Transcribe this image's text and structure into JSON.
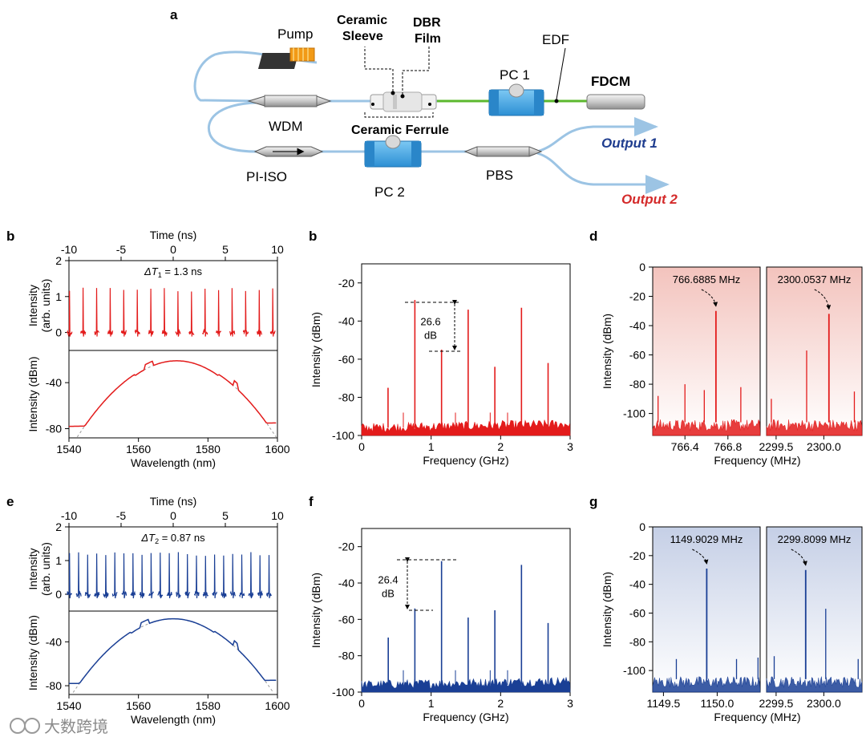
{
  "panel_labels": {
    "a": "a",
    "b1": "b",
    "b2": "b",
    "d": "d",
    "e": "e",
    "f": "f",
    "g": "g"
  },
  "schematic": {
    "pump": "Pump",
    "ceramic_sleeve_1": "Ceramic",
    "ceramic_sleeve_2": "Sleeve",
    "dbr_1": "DBR",
    "dbr_2": "Film",
    "edf": "EDF",
    "pc1": "PC 1",
    "fdcm": "FDCM",
    "wdm": "WDM",
    "ceramic_ferrule": "Ceramic Ferrule",
    "output1": "Output 1",
    "pi_iso": "PI-ISO",
    "pc2": "PC 2",
    "pbs": "PBS",
    "output2": "Output 2",
    "colors": {
      "fiber": "#9cc4e4",
      "green_fiber": "#5cb82e",
      "pc_blue": "#3aa0e0",
      "output1": "#1f3d8f",
      "output2": "#d42a2a"
    }
  },
  "watermark": {
    "text": "大数跨境"
  },
  "chart_data": [
    {
      "id": "b_time",
      "type": "line",
      "color": "#e31b1b",
      "title": "Time (ns)",
      "ylabel": "Intensity (arb. units)",
      "ylabel_lines": [
        "Intensity",
        "(arb. units)"
      ],
      "xlim": [
        -10,
        10
      ],
      "ylim": [
        -0.5,
        2
      ],
      "xticks": [
        "-10",
        "-5",
        "0",
        "5",
        "10"
      ],
      "yticks": [
        "0",
        "1",
        "2"
      ],
      "annotation": "ΔT",
      "annotation_sub": "1",
      "annotation_value": "= 1.3 ns",
      "pulse_period_ns": 1.3
    },
    {
      "id": "b_spec",
      "type": "line",
      "color": "#e31b1b",
      "xlabel": "Wavelength (nm)",
      "ylabel": "Intensity (dBm)",
      "xlim": [
        1540,
        1600
      ],
      "ylim": [
        -88,
        -12
      ],
      "xticks": [
        "1540",
        "1560",
        "1580",
        "1600"
      ],
      "yticks": [
        "-40",
        "-80"
      ],
      "center_nm": 1571,
      "peak_dbm": -21
    },
    {
      "id": "c_rf",
      "type": "bar",
      "color": "#e31b1b",
      "xlabel": "Frequency (GHz)",
      "ylabel": "Intensity (dBm)",
      "xlim": [
        0,
        3
      ],
      "ylim": [
        -100,
        -10
      ],
      "xticks": [
        "0",
        "1",
        "2",
        "3"
      ],
      "yticks": [
        "-20",
        "-40",
        "-60",
        "-80",
        "-100"
      ],
      "peaks": [
        {
          "x": 0.38,
          "y": -75
        },
        {
          "x": 0.766,
          "y": -29
        },
        {
          "x": 1.15,
          "y": -55
        },
        {
          "x": 1.533,
          "y": -34
        },
        {
          "x": 1.917,
          "y": -64
        },
        {
          "x": 2.3,
          "y": -33
        },
        {
          "x": 2.683,
          "y": -62
        }
      ],
      "noise_floor": -96,
      "annotation_value": "26.6",
      "annotation_unit": "dB"
    },
    {
      "id": "d_zoom",
      "type": "bar",
      "color": "#e31b1b",
      "xlabel": "Frequency (MHz)",
      "ylabel": "Intensity (dBm)",
      "ylim": [
        -115,
        0
      ],
      "yticks": [
        "0",
        "-20",
        "-40",
        "-60",
        "-80",
        "-100"
      ],
      "sub_panels": [
        {
          "xlim": [
            766.1,
            767.1
          ],
          "xticks": [
            "766.4",
            "766.8"
          ],
          "label": "766.6885 MHz",
          "peak_x": 766.6885,
          "peak_y": -30,
          "side_peaks": [
            {
              "x": 766.15,
              "y": -88
            },
            {
              "x": 766.4,
              "y": -80
            },
            {
              "x": 766.58,
              "y": -84
            },
            {
              "x": 766.92,
              "y": -82
            }
          ]
        },
        {
          "xlim": [
            2299.4,
            2300.4
          ],
          "xticks": [
            "2299.5",
            "2300.0"
          ],
          "label": "2300.0537 MHz",
          "peak_x": 2300.0537,
          "peak_y": -32,
          "side_peaks": [
            {
              "x": 2299.45,
              "y": -90
            },
            {
              "x": 2299.82,
              "y": -57
            },
            {
              "x": 2300.32,
              "y": -85
            }
          ]
        }
      ]
    },
    {
      "id": "e_time",
      "type": "line",
      "color": "#1a3f95",
      "title": "Time (ns)",
      "ylabel": "Intensity (arb. units)",
      "ylabel_lines": [
        "Intensity",
        "(arb. units)"
      ],
      "xlim": [
        -10,
        10
      ],
      "ylim": [
        -0.5,
        2
      ],
      "xticks": [
        "-10",
        "-5",
        "0",
        "5",
        "10"
      ],
      "yticks": [
        "0",
        "1",
        "2"
      ],
      "annotation": "ΔT",
      "annotation_sub": "2",
      "annotation_value": "= 0.87 ns",
      "pulse_period_ns": 0.87
    },
    {
      "id": "e_spec",
      "type": "line",
      "color": "#1a3f95",
      "xlabel": "Wavelength (nm)",
      "ylabel": "Intensity (dBm)",
      "xlim": [
        1540,
        1600
      ],
      "ylim": [
        -88,
        -12
      ],
      "xticks": [
        "1540",
        "1560",
        "1580",
        "1600"
      ],
      "yticks": [
        "-40",
        "-80"
      ],
      "center_nm": 1570,
      "peak_dbm": -19
    },
    {
      "id": "f_rf",
      "type": "bar",
      "color": "#1a3f95",
      "xlabel": "Frequency (GHz)",
      "ylabel": "Intensity (dBm)",
      "xlim": [
        0,
        3
      ],
      "ylim": [
        -100,
        -10
      ],
      "xticks": [
        "0",
        "1",
        "2",
        "3"
      ],
      "yticks": [
        "-20",
        "-40",
        "-60",
        "-80",
        "-100"
      ],
      "peaks": [
        {
          "x": 0.383,
          "y": -70
        },
        {
          "x": 0.766,
          "y": -54
        },
        {
          "x": 1.15,
          "y": -28
        },
        {
          "x": 1.533,
          "y": -59
        },
        {
          "x": 1.917,
          "y": -55
        },
        {
          "x": 2.3,
          "y": -30
        },
        {
          "x": 2.683,
          "y": -62
        }
      ],
      "noise_floor": -96,
      "annotation_value": "26.4",
      "annotation_unit": "dB"
    },
    {
      "id": "g_zoom",
      "type": "bar",
      "color": "#1a3f95",
      "xlabel": "Frequency (MHz)",
      "ylabel": "Intensity (dBm)",
      "ylim": [
        -115,
        0
      ],
      "yticks": [
        "0",
        "-20",
        "-40",
        "-60",
        "-80",
        "-100"
      ],
      "sub_panels": [
        {
          "xlim": [
            1149.4,
            1150.4
          ],
          "xticks": [
            "1149.5",
            "1150.0"
          ],
          "label": "1149.9029 MHz",
          "peak_x": 1149.9029,
          "peak_y": -29,
          "side_peaks": [
            {
              "x": 1149.62,
              "y": -92
            },
            {
              "x": 1150.18,
              "y": -92
            },
            {
              "x": 1150.38,
              "y": -91
            }
          ]
        },
        {
          "xlim": [
            2299.4,
            2300.4
          ],
          "xticks": [
            "2299.5",
            "2300.0"
          ],
          "label": "2299.8099 MHz",
          "peak_x": 2299.8099,
          "peak_y": -30,
          "side_peaks": [
            {
              "x": 2299.48,
              "y": -90
            },
            {
              "x": 2300.02,
              "y": -57
            },
            {
              "x": 2300.36,
              "y": -92
            }
          ]
        }
      ]
    }
  ]
}
